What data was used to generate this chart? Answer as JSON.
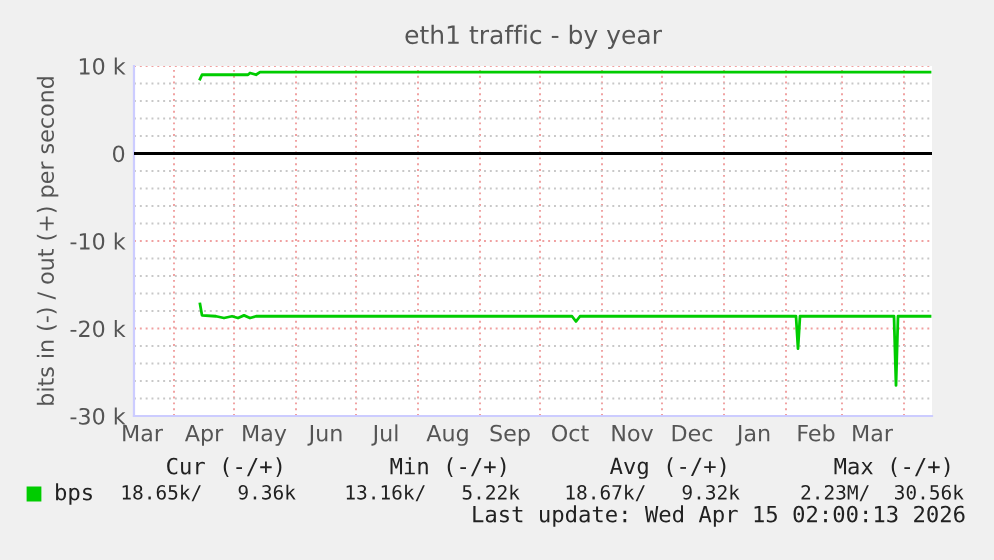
{
  "chart_data": {
    "type": "line",
    "title": "eth1 traffic - by year",
    "ylabel": "bits in (-) / out (+) per second",
    "xlim": [
      "2025-03-12",
      "2026-04-15"
    ],
    "xticks": [
      {
        "value": "2025-03-16",
        "label": "Mar"
      },
      {
        "value": "2025-04-01",
        "label": null
      },
      {
        "value": "2025-04-16",
        "label": "Apr"
      },
      {
        "value": "2025-05-01",
        "label": null
      },
      {
        "value": "2025-05-16",
        "label": "May"
      },
      {
        "value": "2025-06-01",
        "label": null
      },
      {
        "value": "2025-06-16",
        "label": "Jun"
      },
      {
        "value": "2025-07-01",
        "label": null
      },
      {
        "value": "2025-07-16",
        "label": "Jul"
      },
      {
        "value": "2025-08-01",
        "label": null
      },
      {
        "value": "2025-08-16",
        "label": "Aug"
      },
      {
        "value": "2025-09-01",
        "label": null
      },
      {
        "value": "2025-09-16",
        "label": "Sep"
      },
      {
        "value": "2025-10-01",
        "label": null
      },
      {
        "value": "2025-10-16",
        "label": "Oct"
      },
      {
        "value": "2025-11-01",
        "label": null
      },
      {
        "value": "2025-11-16",
        "label": "Nov"
      },
      {
        "value": "2025-12-01",
        "label": null
      },
      {
        "value": "2025-12-16",
        "label": "Dec"
      },
      {
        "value": "2026-01-01",
        "label": null
      },
      {
        "value": "2026-01-16",
        "label": "Jan"
      },
      {
        "value": "2026-02-01",
        "label": null
      },
      {
        "value": "2026-02-16",
        "label": "Feb"
      },
      {
        "value": "2026-03-01",
        "label": null
      },
      {
        "value": "2026-03-16",
        "label": "Mar"
      },
      {
        "value": "2026-04-01",
        "label": null
      }
    ],
    "ylim": [
      -30000,
      10000
    ],
    "yticks": [
      {
        "value": -30000,
        "label": "-30 k"
      },
      {
        "value": -28000,
        "label": null
      },
      {
        "value": -26000,
        "label": null
      },
      {
        "value": -24000,
        "label": null
      },
      {
        "value": -22000,
        "label": null
      },
      {
        "value": -20000,
        "label": "-20 k"
      },
      {
        "value": -18000,
        "label": null
      },
      {
        "value": -16000,
        "label": null
      },
      {
        "value": -14000,
        "label": null
      },
      {
        "value": -12000,
        "label": null
      },
      {
        "value": -10000,
        "label": "-10 k"
      },
      {
        "value": -8000,
        "label": null
      },
      {
        "value": -6000,
        "label": null
      },
      {
        "value": -4000,
        "label": null
      },
      {
        "value": -2000,
        "label": null
      },
      {
        "value": 0,
        "label": "0"
      },
      {
        "value": 2000,
        "label": null
      },
      {
        "value": 4000,
        "label": null
      },
      {
        "value": 6000,
        "label": null
      },
      {
        "value": 8000,
        "label": null
      },
      {
        "value": 10000,
        "label": "10 k"
      }
    ],
    "grid": true,
    "legend": "bottom left",
    "marker": "none",
    "line_style": "solid",
    "ref_lines": [
      {
        "axis": "y",
        "value": 0,
        "color": "#000000"
      }
    ],
    "series": [
      {
        "name": "bps",
        "color": "#00cc00",
        "x": [
          "2025-04-14",
          "2025-04-15",
          "2025-05-08",
          "2025-05-09",
          "2025-05-12",
          "2025-05-14",
          "2026-04-14"
        ],
        "values": [
          8500,
          9000,
          9000,
          9200,
          9000,
          9300,
          9300
        ]
      },
      {
        "color": "#00cc00",
        "x": [
          "2025-04-14",
          "2025-04-15",
          "2025-04-22",
          "2025-04-26",
          "2025-04-30",
          "2025-05-03",
          "2025-05-06",
          "2025-05-09",
          "2025-05-12",
          "2025-10-17",
          "2025-10-19",
          "2025-10-21",
          "2026-02-06",
          "2026-02-07",
          "2026-02-08",
          "2026-03-27",
          "2026-03-28",
          "2026-03-29",
          "2026-04-14"
        ],
        "values": [
          -17200,
          -18500,
          -18600,
          -18800,
          -18600,
          -18800,
          -18500,
          -18800,
          -18600,
          -18600,
          -19200,
          -18600,
          -18600,
          -22300,
          -18600,
          -18600,
          -26500,
          -18600,
          -18600
        ]
      }
    ],
    "annotations": [
      "Cur (-/+)",
      "Min (-/+)",
      "Avg (-/+)",
      "Max (-/+)",
      "18.65k/   9.36k",
      "13.16k/   5.22k",
      "18.67k/   9.32k",
      "2.23M/  30.56k",
      "Last update: Wed Apr 15 02:00:13 2026"
    ]
  }
}
